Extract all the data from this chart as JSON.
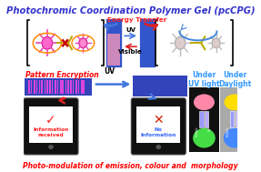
{
  "title": "Photochromic Coordination Polymer Gel (pcCPG)",
  "title_color": "#3333cc",
  "subtitle": "Photo-modulation of emission, colour and  morphology",
  "subtitle_color": "#ff0000",
  "bg_color": "#ffffff",
  "energy_transfer_text": "Energy Transfer",
  "energy_transfer_color": "#ff2222",
  "uv_text": "UV",
  "visible_text": "Visible",
  "pattern_encryption_text": "Pattern Encryption",
  "pattern_encryption_color": "#ff0000",
  "under_uv_text": "Under\nUV light",
  "under_daylight_text": "Under\nDaylight",
  "uv_light_color": "#3399ff",
  "daylight_color": "#3399ff",
  "center_rect_color": "#3355cc",
  "center_rect_inner_color": "#cc88bb",
  "center_rect2_color": "#3355cc",
  "arrow_blue_color": "#4477dd",
  "arrow_red_color": "#dd2222",
  "barcode_color": "#3344bb",
  "barcode_stripe_color": "#dd44dd",
  "uv_label2": "UV",
  "phone_bg": "#111111",
  "phone_screen_color": "#ffffff",
  "info_received_color": "#ff2222",
  "no_info_color": "#3366ff",
  "uv_panel_bg": "#111111",
  "daylight_panel_bg": "#aaaaaa",
  "pink_blob_color": "#ff88aa",
  "green_blob_color": "#44dd44",
  "yellow_blob_color": "#ffdd00",
  "blue_blob_color": "#4488ff"
}
